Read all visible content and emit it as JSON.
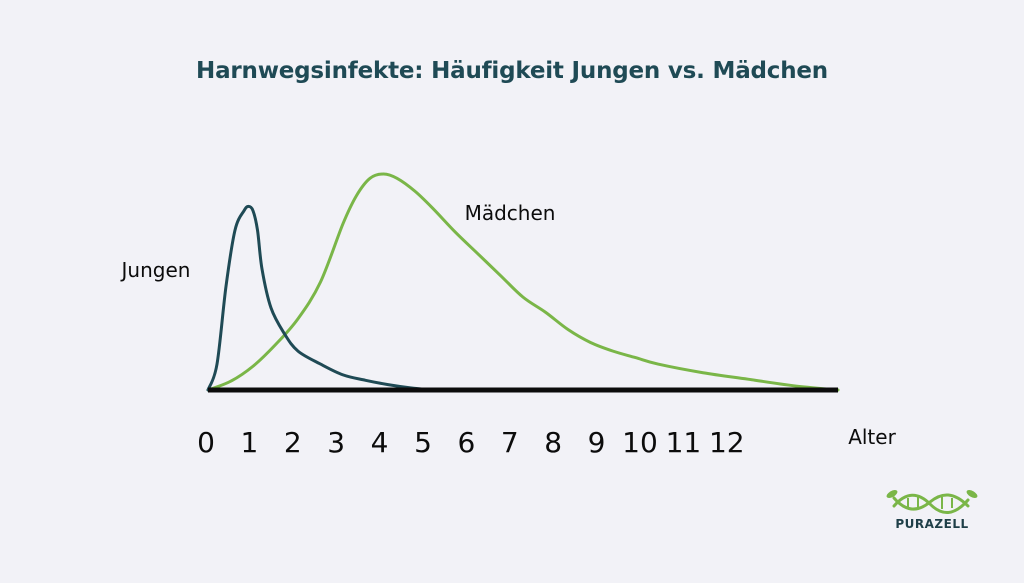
{
  "chart_data": {
    "type": "line",
    "title": "Harnwegsinfekte: Häufigkeit Jungen vs. Mädchen",
    "xlabel": "Alter",
    "ylabel": "",
    "xlim": [
      0,
      14
    ],
    "ylim": [
      0,
      100
    ],
    "x_ticks": [
      "0",
      "1",
      "2",
      "3",
      "4",
      "5",
      "6",
      "7",
      "8",
      "9",
      "10",
      "11",
      "12"
    ],
    "grid": false,
    "legend": "inline labels",
    "series": [
      {
        "name": "Jungen",
        "color": "#1f4a55",
        "points": [
          [
            0,
            0
          ],
          [
            0.2,
            12
          ],
          [
            0.4,
            48
          ],
          [
            0.6,
            74
          ],
          [
            0.8,
            83
          ],
          [
            0.9,
            85
          ],
          [
            1.0,
            83
          ],
          [
            1.1,
            74
          ],
          [
            1.2,
            56
          ],
          [
            1.4,
            38
          ],
          [
            1.7,
            26
          ],
          [
            2.0,
            18
          ],
          [
            2.5,
            12
          ],
          [
            3.0,
            7
          ],
          [
            3.5,
            4.5
          ],
          [
            4.0,
            2.5
          ],
          [
            4.5,
            1
          ],
          [
            5.0,
            0
          ]
        ]
      },
      {
        "name": "Mädchen",
        "color": "#7ab648",
        "points": [
          [
            0,
            0
          ],
          [
            0.5,
            4
          ],
          [
            1.0,
            11
          ],
          [
            1.5,
            21
          ],
          [
            2.0,
            33
          ],
          [
            2.5,
            50
          ],
          [
            3.0,
            77
          ],
          [
            3.3,
            90
          ],
          [
            3.6,
            98
          ],
          [
            3.9,
            100
          ],
          [
            4.2,
            98
          ],
          [
            4.6,
            92
          ],
          [
            5.0,
            84
          ],
          [
            5.5,
            73
          ],
          [
            6.0,
            63
          ],
          [
            6.5,
            53
          ],
          [
            7.0,
            43
          ],
          [
            7.5,
            36
          ],
          [
            8.0,
            28
          ],
          [
            8.5,
            22
          ],
          [
            9.0,
            18
          ],
          [
            9.5,
            15
          ],
          [
            10.0,
            12
          ],
          [
            11.0,
            8
          ],
          [
            12.0,
            5
          ],
          [
            13.0,
            2
          ],
          [
            14.0,
            0
          ]
        ]
      }
    ]
  },
  "brand": {
    "name": "PURAZELL",
    "primary_color": "#7ab648",
    "secondary_color": "#1f3f48"
  }
}
